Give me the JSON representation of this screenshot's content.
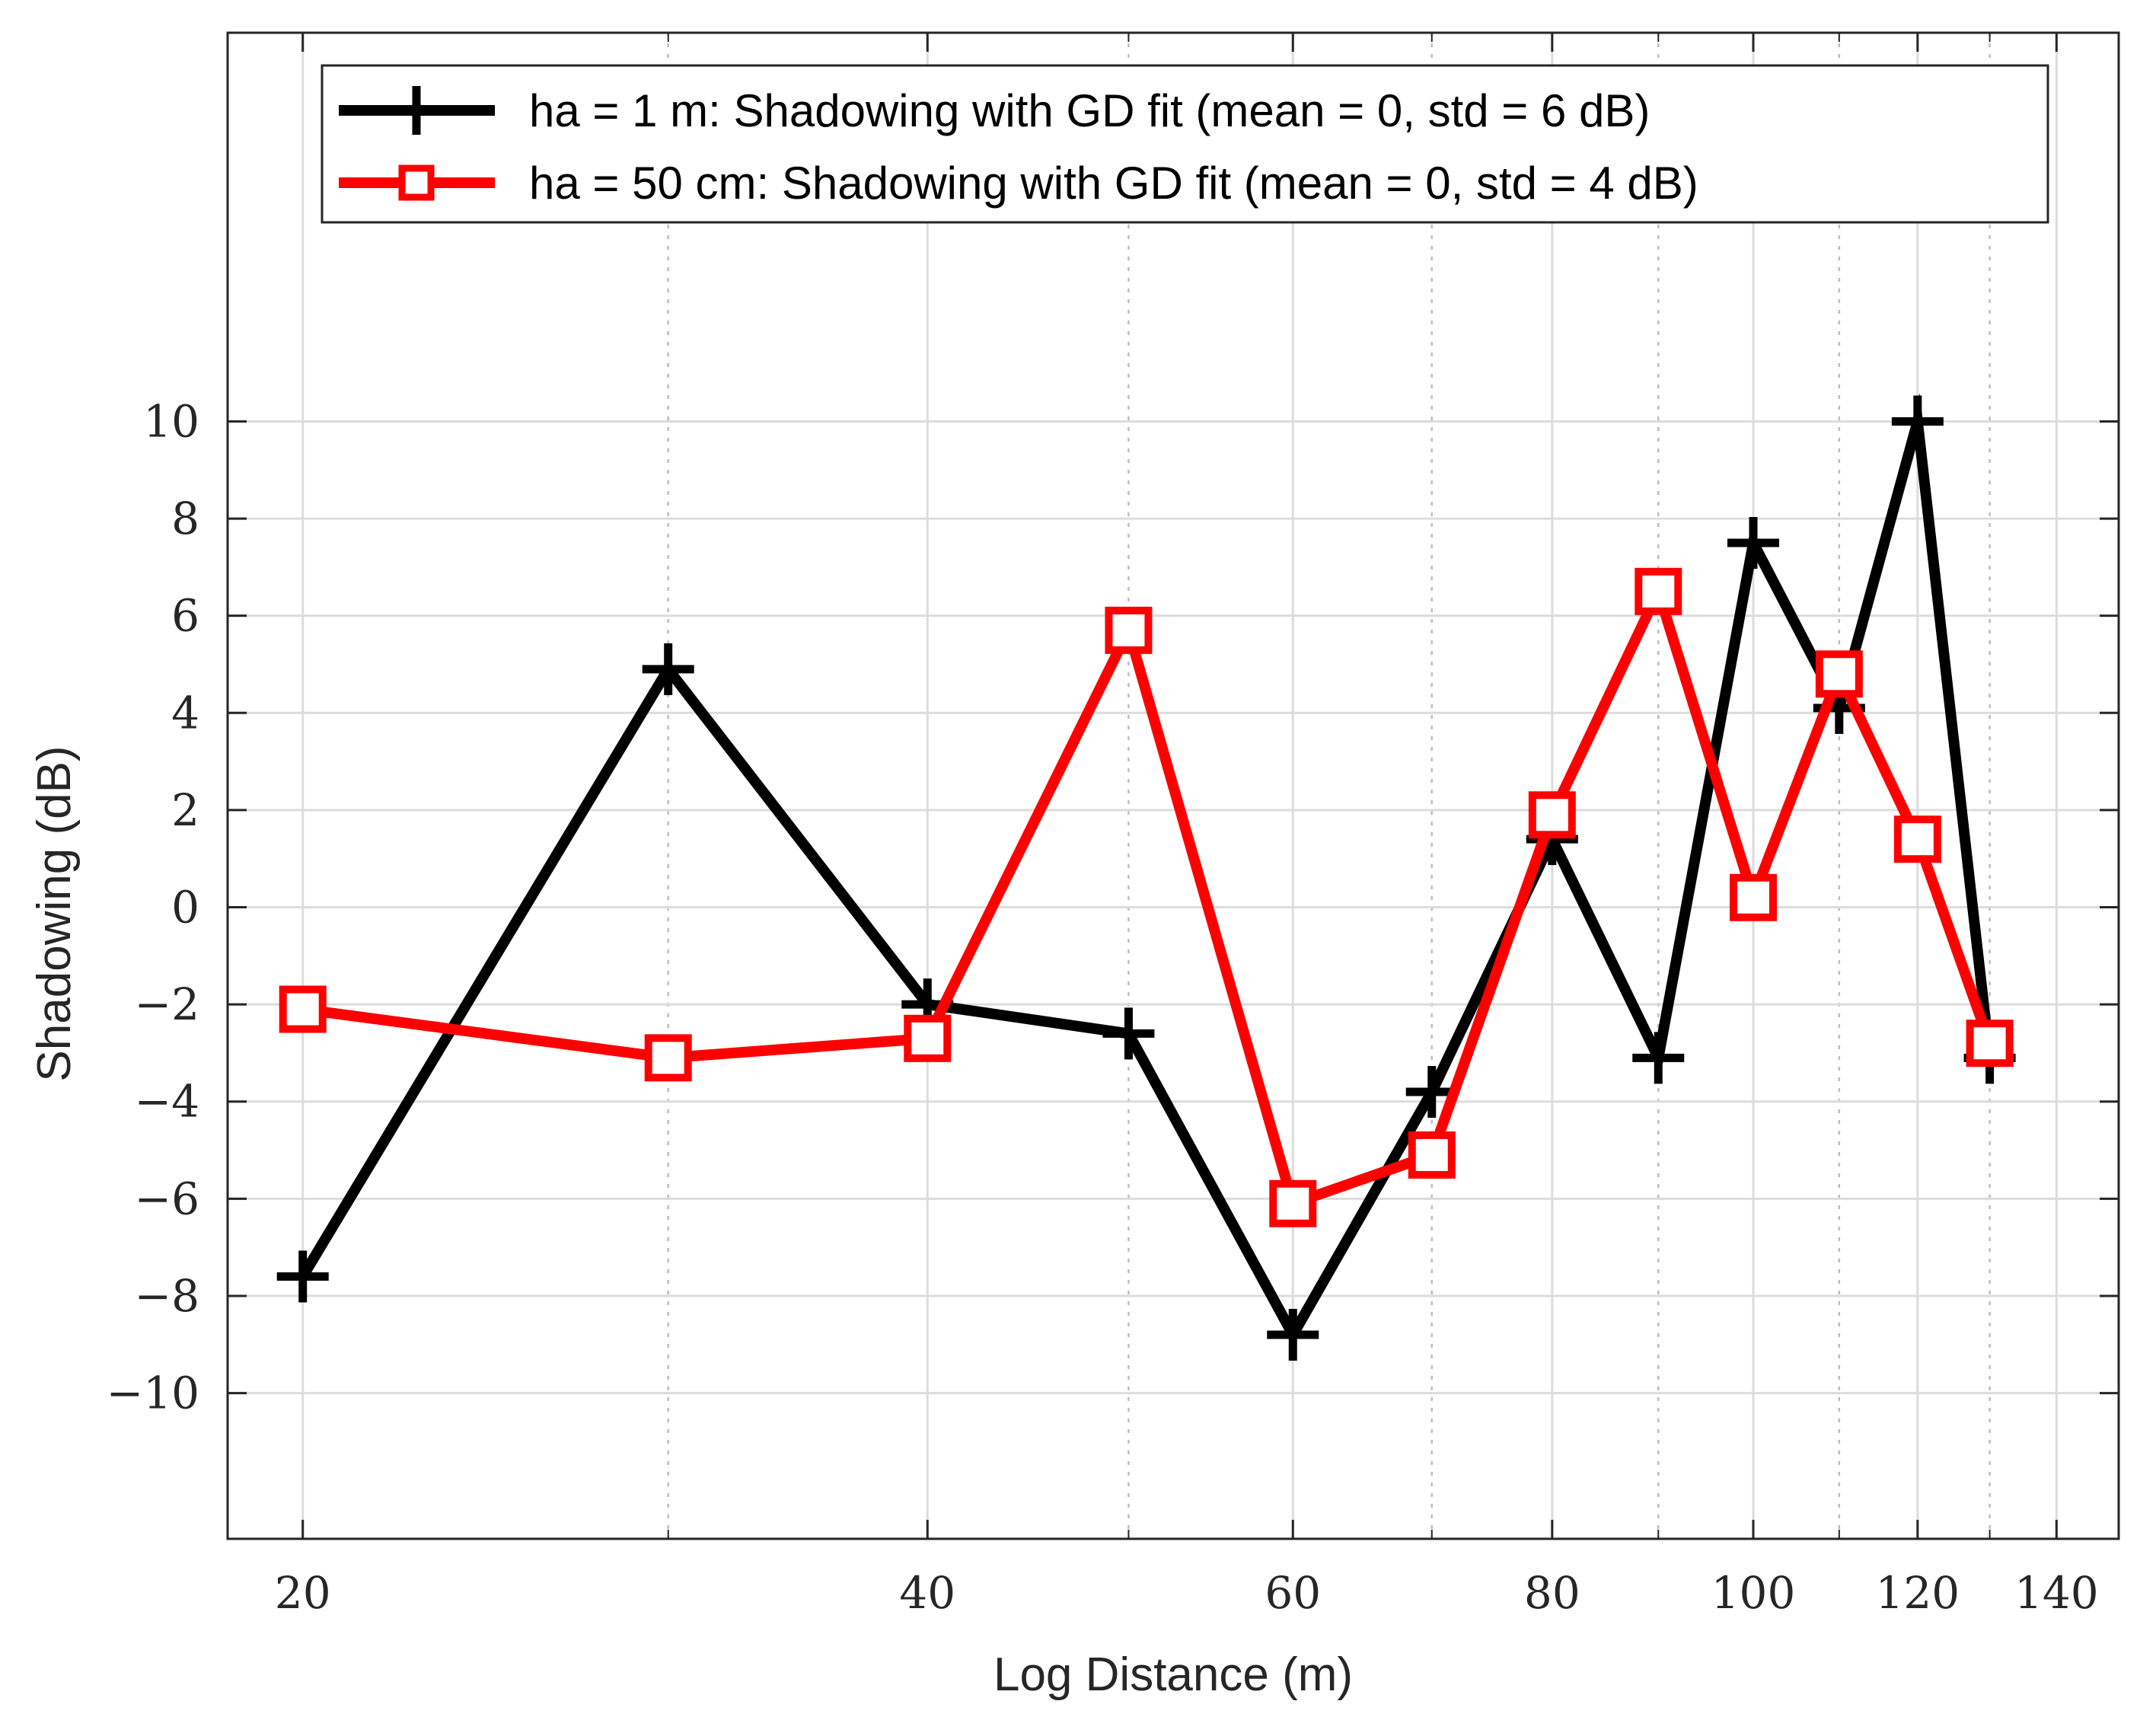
{
  "chart_data": {
    "type": "line",
    "xscale": "log",
    "xlabel": "Log Distance (m)",
    "ylabel": "Shadowing (dB)",
    "xlim": [
      18.4,
      150
    ],
    "ylim": [
      -13,
      18
    ],
    "grid": true,
    "legend_position": "top",
    "x_ticks": [
      20,
      40,
      60,
      80,
      100,
      120,
      140
    ],
    "x_tick_labels": [
      "20",
      "40",
      "60",
      "80",
      "100",
      "120",
      "140"
    ],
    "x_minor_ticks": [
      30,
      50,
      70,
      90,
      110,
      130
    ],
    "y_ticks": [
      -10,
      -8,
      -6,
      -4,
      -2,
      0,
      2,
      4,
      6,
      8,
      10
    ],
    "y_tick_labels": [
      "−10",
      "−8",
      "−6",
      "−4",
      "−2",
      "0",
      "2",
      "4",
      "6",
      "8",
      "10"
    ],
    "series": [
      {
        "name": "ha = 1 m: Shadowing with GD fit (mean = 0, std = 6 dB)",
        "color": "#000000",
        "marker": "plus",
        "x": [
          20,
          30,
          40,
          50,
          60,
          70,
          80,
          90,
          100,
          110,
          120,
          130
        ],
        "y": [
          -7.6,
          4.9,
          -2.0,
          -2.6,
          -8.8,
          -3.8,
          1.4,
          -3.1,
          7.5,
          4.1,
          10.0,
          -3.1
        ]
      },
      {
        "name": "ha = 50 cm: Shadowing with GD fit (mean = 0, std = 4 dB)",
        "color": "#ff0000",
        "marker": "square",
        "x": [
          20,
          30,
          40,
          50,
          60,
          70,
          80,
          90,
          100,
          110,
          120,
          130
        ],
        "y": [
          -2.1,
          -3.1,
          -2.7,
          5.7,
          -6.1,
          -5.1,
          1.9,
          6.5,
          0.2,
          4.8,
          1.4,
          -2.8
        ]
      }
    ]
  }
}
